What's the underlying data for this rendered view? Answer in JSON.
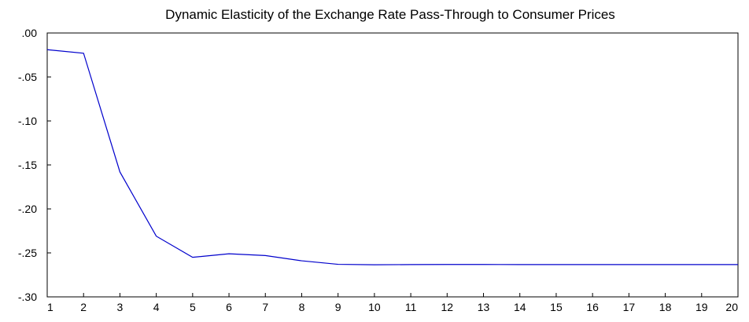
{
  "chart_data": {
    "type": "line",
    "title": "Dynamic Elasticity of the Exchange Rate Pass-Through to Consumer Prices",
    "xlabel": "",
    "ylabel": "",
    "categories": [
      "1",
      "2",
      "3",
      "4",
      "5",
      "6",
      "7",
      "8",
      "9",
      "10",
      "11",
      "12",
      "13",
      "14",
      "15",
      "16",
      "17",
      "18",
      "19",
      "20"
    ],
    "ylim": [
      -0.3,
      0.0
    ],
    "yticks": [
      0.0,
      -0.05,
      -0.1,
      -0.15,
      -0.2,
      -0.25,
      -0.3
    ],
    "ytick_labels": [
      ".00",
      "-.05",
      "-.10",
      "-.15",
      "-.20",
      "-.25",
      "-.30"
    ],
    "grid": false,
    "series": [
      {
        "color": "#0000cc",
        "values": [
          -0.019,
          -0.023,
          -0.158,
          -0.231,
          -0.255,
          -0.251,
          -0.253,
          -0.259,
          -0.263,
          -0.2635,
          -0.2633,
          -0.2632,
          -0.2632,
          -0.2633,
          -0.2633,
          -0.2633,
          -0.2633,
          -0.2633,
          -0.2633,
          -0.2633
        ]
      }
    ]
  }
}
